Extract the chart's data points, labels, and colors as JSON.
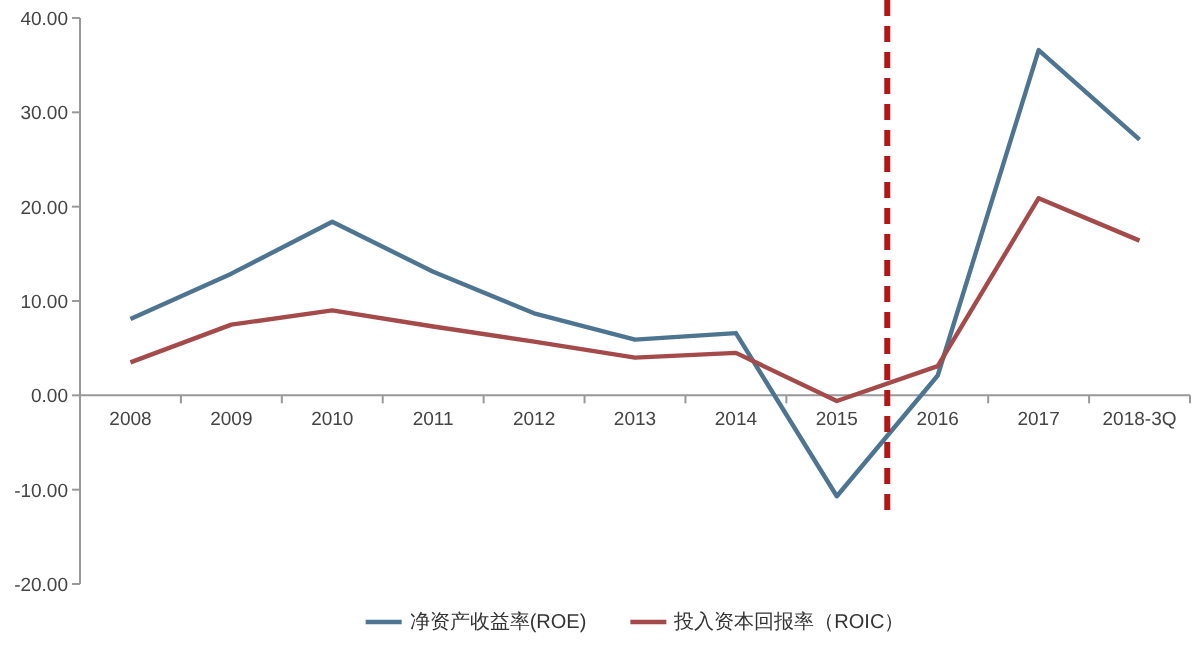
{
  "chart_data": {
    "type": "line",
    "categories": [
      "2008",
      "2009",
      "2010",
      "2011",
      "2012",
      "2013",
      "2014",
      "2015",
      "2016",
      "2017",
      "2018-3Q"
    ],
    "series": [
      {
        "name": "净资产收益率(ROE)",
        "color": "#4d7491",
        "values": [
          8.1,
          12.9,
          18.4,
          13.1,
          8.7,
          5.9,
          6.6,
          -10.7,
          2.1,
          36.6,
          27.1
        ]
      },
      {
        "name": "投入资本回报率（ROIC）",
        "color": "#a44a4a",
        "values": [
          3.5,
          7.5,
          9.0,
          7.3,
          5.7,
          4.0,
          4.5,
          -0.6,
          3.1,
          20.9,
          16.4
        ]
      }
    ],
    "ylim": [
      -20,
      40
    ],
    "yticks": [
      {
        "value": -20,
        "label": "-20.00"
      },
      {
        "value": -10,
        "label": "-10.00"
      },
      {
        "value": 0,
        "label": "0.00"
      },
      {
        "value": 10,
        "label": "10.00"
      },
      {
        "value": 20,
        "label": "20.00"
      },
      {
        "value": 30,
        "label": "30.00"
      },
      {
        "value": 40,
        "label": "40.00"
      }
    ],
    "grid": false,
    "legend": "bottom",
    "marker": "none",
    "line_style": "solid"
  }
}
